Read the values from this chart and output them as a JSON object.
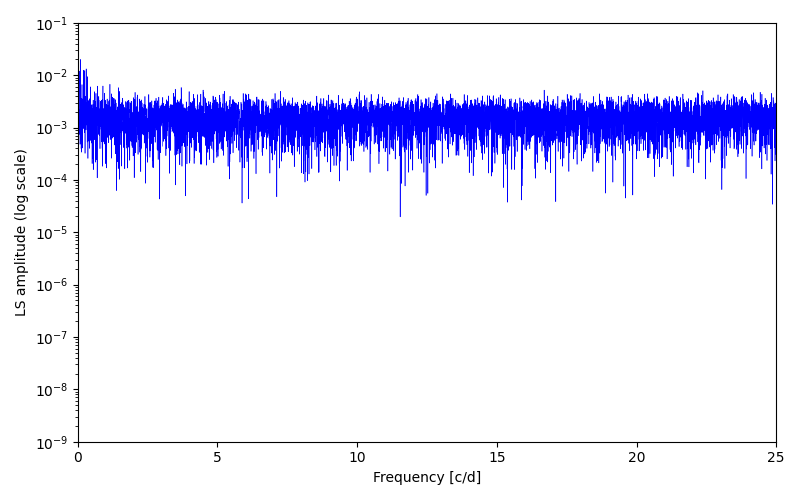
{
  "xlabel": "Frequency [c/d]",
  "ylabel": "LS amplitude (log scale)",
  "xlim": [
    0,
    25
  ],
  "ylim": [
    1e-09,
    0.1
  ],
  "line_color": "#0000ff",
  "line_width": 0.4,
  "figsize": [
    8.0,
    5.0
  ],
  "dpi": 100,
  "seed": 12345,
  "n_freq": 8000,
  "freq_max": 25.0,
  "t_span": 400,
  "n_obs": 2000,
  "background_color": "#ffffff"
}
